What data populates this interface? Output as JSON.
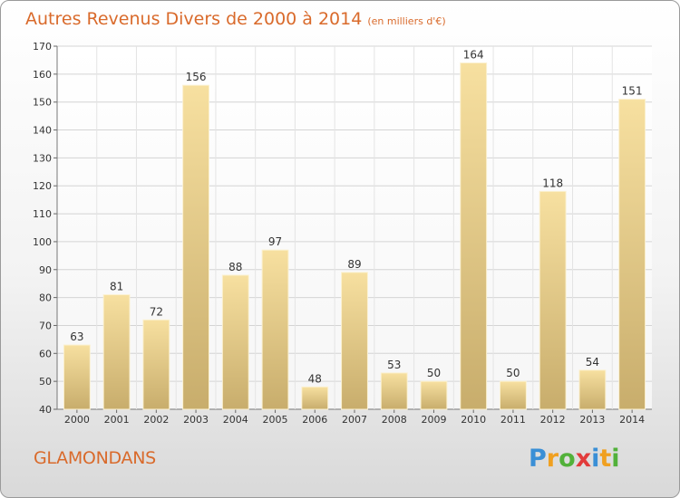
{
  "header": {
    "title": "Autres Revenus Divers de 2000 à 2014",
    "subtitle": "(en milliers d'€)"
  },
  "footer": {
    "commune": "GLAMONDANS",
    "logo_letters": [
      "P",
      "r",
      "o",
      "x",
      "i",
      "t",
      "i"
    ],
    "logo_colors": [
      "#3a8fd6",
      "#f0a020",
      "#52b13a",
      "#e23b3b",
      "#3a8fd6",
      "#f0a020",
      "#52b13a"
    ]
  },
  "chart_data": {
    "type": "bar",
    "title": "Autres Revenus Divers de 2000 à 2014",
    "subtitle": "(en milliers d'€)",
    "categories": [
      "2000",
      "2001",
      "2002",
      "2003",
      "2004",
      "2005",
      "2006",
      "2007",
      "2008",
      "2009",
      "2010",
      "2011",
      "2012",
      "2013",
      "2014"
    ],
    "values": [
      63,
      81,
      72,
      156,
      88,
      97,
      48,
      89,
      53,
      50,
      164,
      50,
      118,
      54,
      151
    ],
    "ylim": [
      40,
      170
    ],
    "yticks": [
      40,
      50,
      60,
      70,
      80,
      90,
      100,
      110,
      120,
      130,
      140,
      150,
      160,
      170
    ],
    "grid": true,
    "bar_color_light": "#f7e0a0",
    "bar_color_dark": "#c8ad6c",
    "grid_color": "#d4d4d4"
  }
}
